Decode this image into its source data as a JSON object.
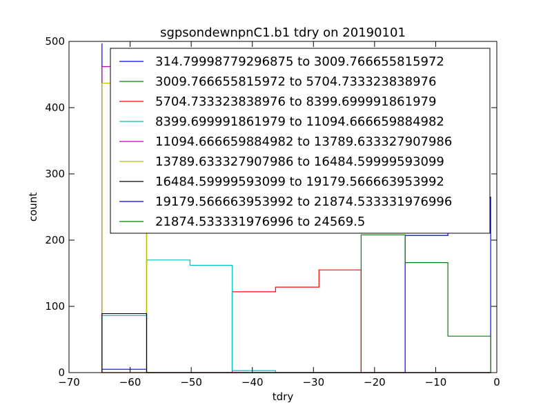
{
  "chart_data": {
    "type": "histogram-step",
    "title": "sgpsondewnpnC1.b1 tdry on 20190101",
    "xlabel": "tdry",
    "ylabel": "count",
    "xlim": [
      -70,
      0
    ],
    "ylim": [
      0,
      500
    ],
    "xticks": [
      -70,
      -60,
      -50,
      -40,
      -30,
      -20,
      -10,
      0
    ],
    "yticks": [
      0,
      100,
      200,
      300,
      400,
      500
    ],
    "bin_edges": [
      -64.6,
      -57.3,
      -50.2,
      -43.3,
      -36.2,
      -29.1,
      -22.2,
      -15.0,
      -8.0,
      -1.0
    ],
    "legend_position": "upper-right",
    "grid": false,
    "series": [
      {
        "name": "314.79998779296875 to 3009.766655815972",
        "color": "#0000ff",
        "counts": [
          5,
          0,
          0,
          0,
          0,
          0,
          0,
          207,
          265
        ],
        "spike_at": -64.6,
        "spike_to": 497
      },
      {
        "name": "3009.766655815972 to 5704.733323838976",
        "color": "#008000",
        "counts": [
          0,
          0,
          0,
          0,
          0,
          0,
          208,
          166,
          55
        ]
      },
      {
        "name": "5704.733323838976 to 8399.699991861979",
        "color": "#ff0000",
        "counts": [
          0,
          0,
          0,
          122,
          129,
          155,
          0,
          0,
          0
        ]
      },
      {
        "name": "8399.699991861979 to 11094.666659884982",
        "color": "#00bfbf",
        "counts": [
          86,
          170,
          162,
          3,
          0,
          0,
          0,
          0,
          0
        ]
      },
      {
        "name": "11094.666659884982 to 13789.633327907986",
        "color": "#bf00bf",
        "counts": [
          462,
          0,
          0,
          0,
          0,
          0,
          0,
          0,
          0
        ]
      },
      {
        "name": "13789.633327907986 to 16484.59999593099",
        "color": "#bfbf00",
        "counts": [
          437,
          0,
          0,
          0,
          0,
          0,
          0,
          0,
          0
        ],
        "spike_at": -57.3,
        "spike_to": 300
      },
      {
        "name": "16484.59999593099 to 19179.566663953992",
        "color": "#000000",
        "counts": [
          89,
          0,
          0,
          0,
          0,
          0,
          0,
          0,
          0
        ]
      },
      {
        "name": "19179.566663953992 to 21874.533331976996",
        "color": "#0000ff",
        "counts": [
          0,
          0,
          0,
          0,
          0,
          0,
          0,
          0,
          0
        ]
      },
      {
        "name": "21874.533331976996 to 24569.5",
        "color": "#008000",
        "counts": [
          0,
          0,
          0,
          0,
          0,
          0,
          0,
          0,
          0
        ]
      }
    ]
  }
}
